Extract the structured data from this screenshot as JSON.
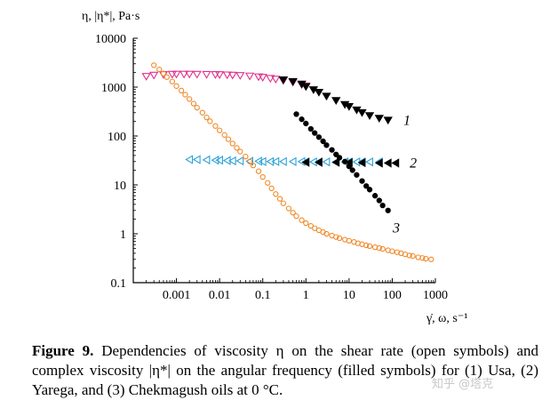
{
  "chart_data": {
    "type": "scatter",
    "ylabel": "η, |η*|, Pa·s",
    "xlabel": "γ̇, ω, s⁻¹",
    "xscale": "log",
    "yscale": "log",
    "xlim": [
      0.0001,
      1000
    ],
    "ylim": [
      0.1,
      10000
    ],
    "xticks": [
      0.001,
      0.01,
      0.1,
      1,
      10,
      100,
      1000
    ],
    "xtick_labels": [
      "0.001",
      "0.01",
      "0.1",
      "1",
      "10",
      "100",
      "1000"
    ],
    "yticks": [
      0.1,
      1,
      10,
      100,
      1000,
      10000
    ],
    "ytick_labels": [
      "0.1",
      "1",
      "10",
      "100",
      "1000",
      "10000"
    ],
    "grid": false,
    "series": [
      {
        "label": "1",
        "marker": "triangle-down",
        "filled": false,
        "color": "#e0308a",
        "x": [
          0.0002,
          0.0003,
          0.0005,
          0.0008,
          0.001,
          0.0015,
          0.002,
          0.003,
          0.005,
          0.008,
          0.01,
          0.015,
          0.02,
          0.03,
          0.05,
          0.08,
          0.1,
          0.15,
          0.2,
          0.3,
          0.5,
          0.8,
          1.0
        ],
        "y": [
          1650,
          1750,
          1800,
          1820,
          1830,
          1830,
          1830,
          1820,
          1810,
          1800,
          1790,
          1770,
          1750,
          1720,
          1680,
          1620,
          1580,
          1500,
          1450,
          1360,
          1250,
          1120,
          1050
        ]
      },
      {
        "label": "1",
        "marker": "triangle-down",
        "filled": true,
        "color": "#000000",
        "x": [
          0.3,
          0.5,
          0.8,
          1.0,
          1.5,
          2,
          3,
          5,
          8,
          10,
          15,
          20,
          30,
          50,
          80
        ],
        "y": [
          1400,
          1300,
          1150,
          1020,
          880,
          780,
          650,
          530,
          440,
          400,
          340,
          300,
          260,
          230,
          210
        ]
      },
      {
        "label": "2",
        "marker": "triangle-left",
        "filled": false,
        "color": "#2aa0d8",
        "x": [
          0.002,
          0.003,
          0.005,
          0.008,
          0.01,
          0.015,
          0.02,
          0.03,
          0.05,
          0.08,
          0.1,
          0.15,
          0.2,
          0.3,
          0.5,
          0.8,
          1,
          1.5,
          2,
          3,
          5,
          8,
          10,
          15,
          20,
          30,
          50
        ],
        "y": [
          33,
          33,
          32.5,
          32,
          32,
          31.5,
          31,
          31,
          30.5,
          30.5,
          30,
          30,
          30,
          30,
          30,
          30,
          29.5,
          29.5,
          29.5,
          29.5,
          29.5,
          29.5,
          29.5,
          29.5,
          29.5,
          29.5,
          29.5
        ]
      },
      {
        "label": "2",
        "marker": "triangle-left",
        "filled": true,
        "color": "#000000",
        "x": [
          1,
          2,
          5,
          10,
          20,
          50,
          80,
          120
        ],
        "y": [
          29,
          29,
          29,
          28.5,
          28.5,
          28,
          28,
          28
        ]
      },
      {
        "label": "3",
        "marker": "circle",
        "filled": true,
        "color": "#000000",
        "x": [
          0.6,
          0.8,
          1.0,
          1.3,
          1.6,
          2,
          2.5,
          3,
          4,
          5,
          6,
          8,
          10,
          12,
          15,
          20,
          25,
          30,
          40,
          50,
          60,
          80
        ],
        "y": [
          280,
          220,
          180,
          140,
          115,
          95,
          78,
          65,
          52,
          42,
          36,
          30,
          24,
          20,
          16,
          12,
          9.5,
          8,
          6,
          4.8,
          3.8,
          3
        ]
      },
      {
        "label": "",
        "marker": "circle",
        "filled": false,
        "color": "#f08a2a",
        "x": [
          0.0003,
          0.0004,
          0.0005,
          0.0006,
          0.0008,
          0.001,
          0.0013,
          0.0016,
          0.002,
          0.0025,
          0.003,
          0.004,
          0.005,
          0.006,
          0.008,
          0.01,
          0.013,
          0.016,
          0.02,
          0.025,
          0.03,
          0.04,
          0.05,
          0.06,
          0.08,
          0.1,
          0.13,
          0.16,
          0.2,
          0.25,
          0.3,
          0.4,
          0.5,
          0.6,
          0.8,
          1,
          1.3,
          1.6,
          2,
          2.5,
          3,
          4,
          5,
          6,
          8,
          10,
          13,
          16,
          20,
          25,
          30,
          40,
          50,
          60,
          80,
          100,
          130,
          160,
          200,
          250,
          300,
          400,
          500,
          600,
          800
        ],
        "y": [
          2800,
          2300,
          1900,
          1600,
          1300,
          1050,
          850,
          700,
          570,
          460,
          380,
          300,
          240,
          200,
          160,
          130,
          105,
          86,
          70,
          57,
          48,
          38,
          30,
          25,
          19,
          14.5,
          11,
          8.5,
          6.5,
          5.2,
          4.2,
          3.3,
          2.7,
          2.3,
          1.9,
          1.65,
          1.45,
          1.3,
          1.18,
          1.08,
          1.0,
          0.92,
          0.86,
          0.81,
          0.76,
          0.72,
          0.68,
          0.64,
          0.61,
          0.58,
          0.56,
          0.53,
          0.51,
          0.49,
          0.46,
          0.44,
          0.42,
          0.4,
          0.38,
          0.36,
          0.35,
          0.33,
          0.32,
          0.31,
          0.3
        ]
      }
    ],
    "annotations": [
      {
        "text": "1",
        "x": 150,
        "y": 210
      },
      {
        "text": "2",
        "x": 210,
        "y": 28
      },
      {
        "text": "3",
        "x": 85,
        "y": 1.3
      }
    ]
  },
  "caption": {
    "figure_label": "Figure 9.",
    "text": " Dependencies of viscosity η on the shear rate (open symbols) and complex viscosity |η*| on the angular frequency (filled symbols) for (1) Usa, (2) Yarega, and (3) Chekmagush oils at 0 °C."
  },
  "watermark": "知乎 @塔克"
}
